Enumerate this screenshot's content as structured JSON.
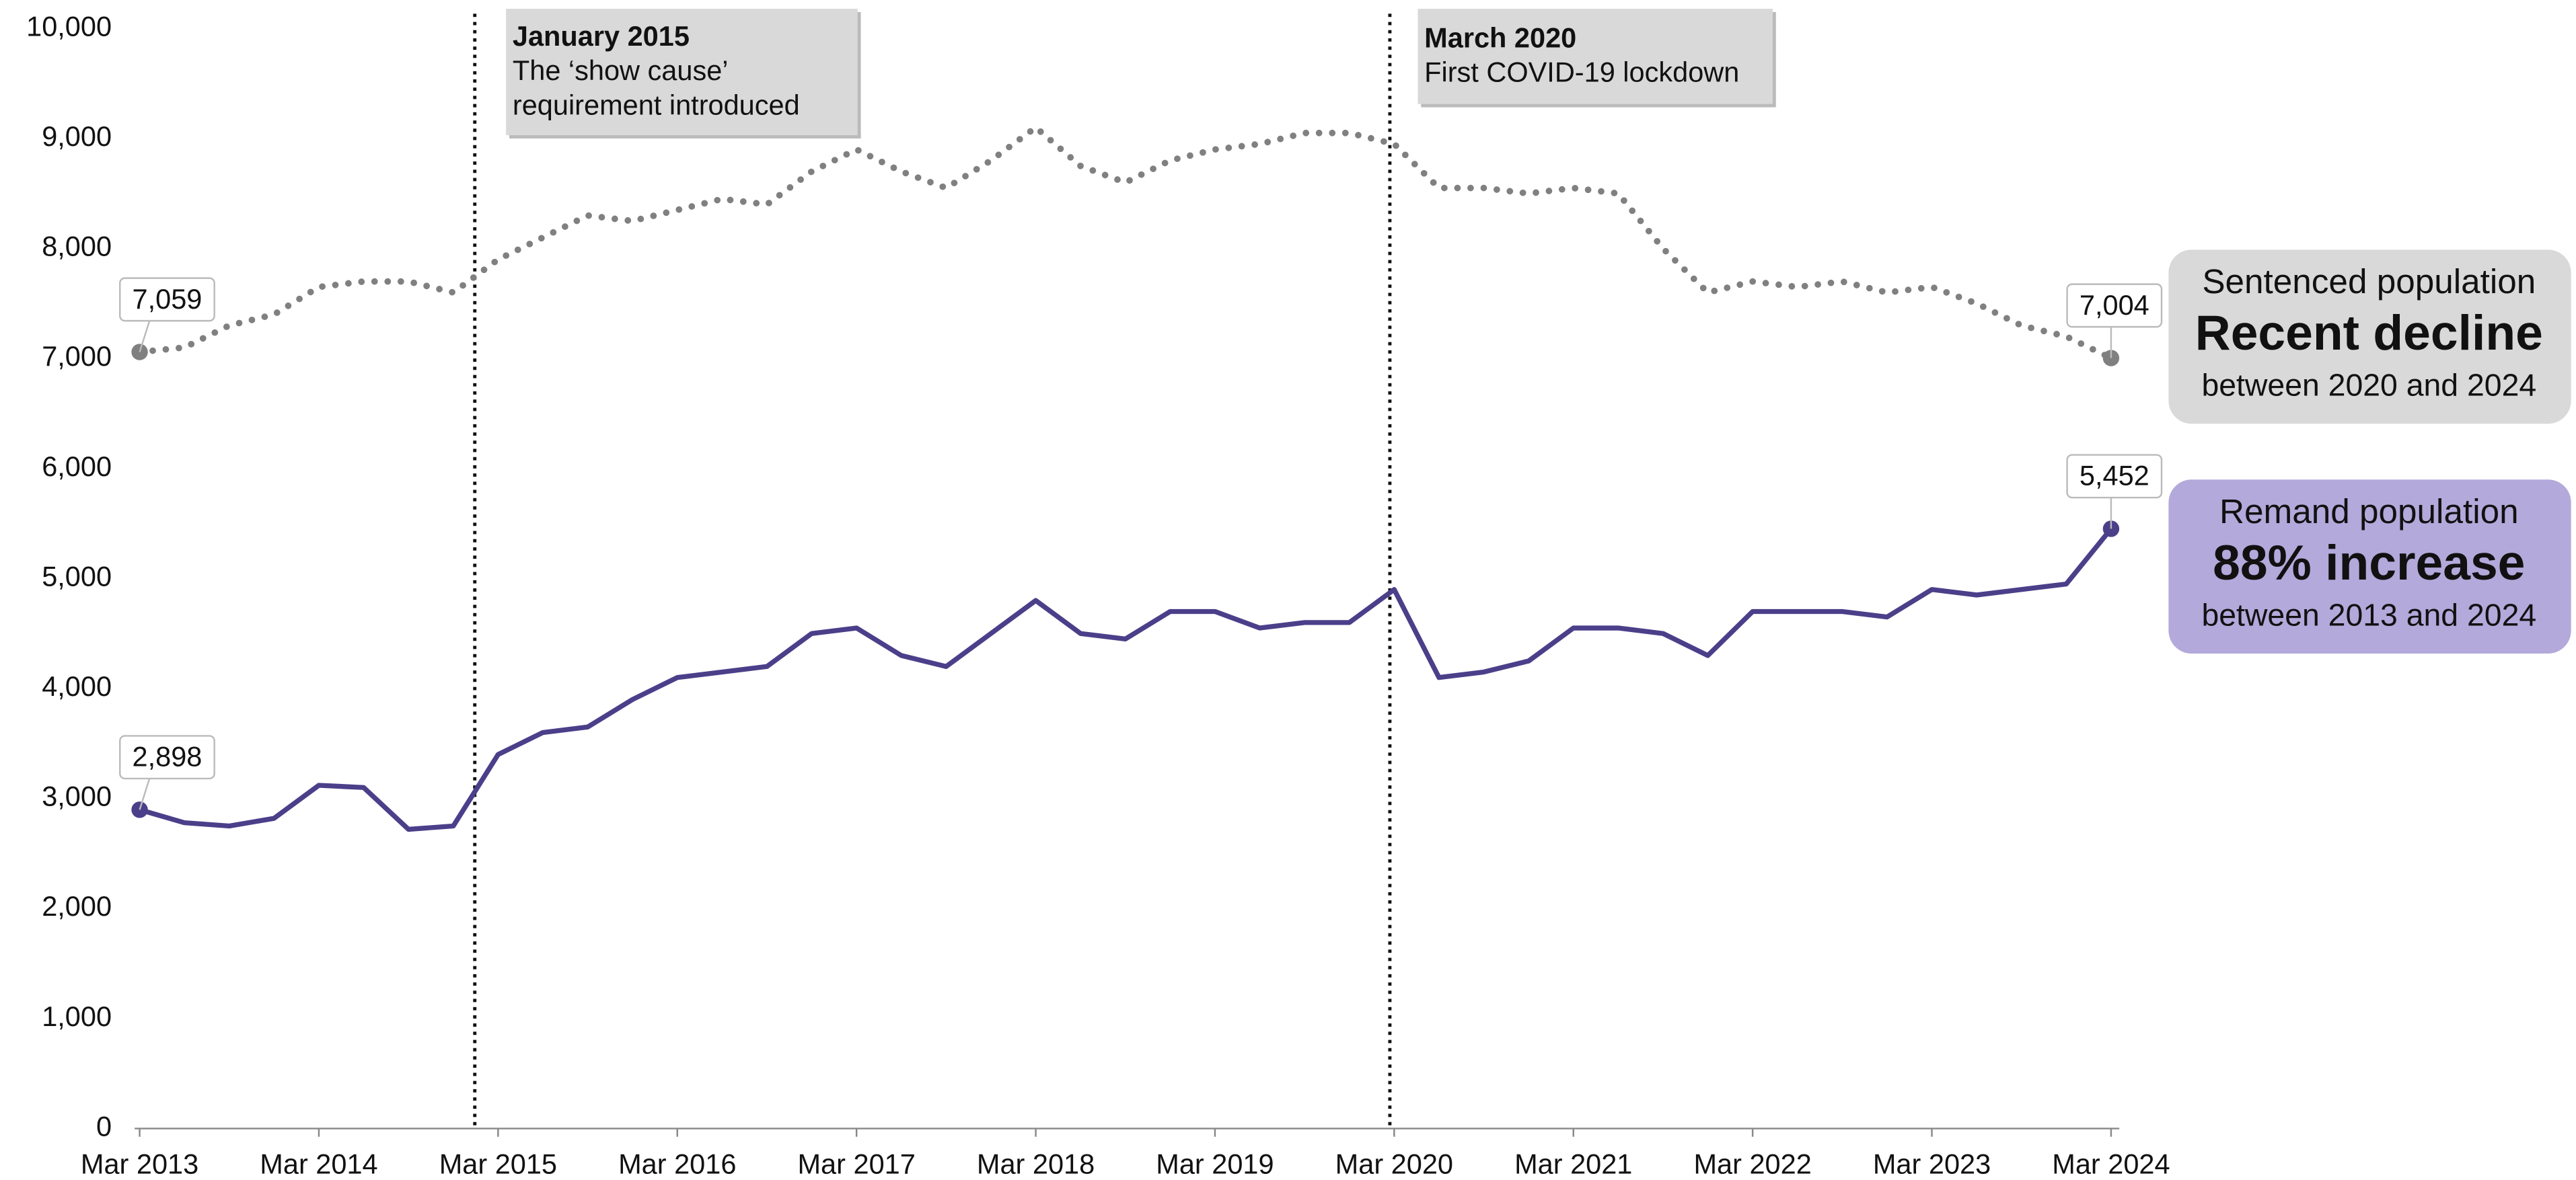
{
  "chart_data": {
    "type": "line",
    "categories": [
      "Mar 2013",
      null,
      null,
      null,
      "Mar 2014",
      null,
      null,
      null,
      "Mar 2015",
      null,
      null,
      null,
      "Mar 2016",
      null,
      null,
      null,
      "Mar 2017",
      null,
      null,
      null,
      "Mar 2018",
      null,
      null,
      null,
      "Mar 2019",
      null,
      null,
      null,
      "Mar 2020",
      null,
      null,
      null,
      "Mar 2021",
      null,
      null,
      null,
      "Mar 2022",
      null,
      null,
      null,
      "Mar 2023",
      null,
      null,
      null,
      "Mar 2024"
    ],
    "ylim": [
      0,
      10000
    ],
    "yticks": [
      0,
      {
        "value": 1000,
        "label": "1,000"
      },
      {
        "value": 2000,
        "label": "2,000"
      },
      {
        "value": 3000,
        "label": "3,000"
      },
      {
        "value": 4000,
        "label": "4,000"
      },
      {
        "value": 5000,
        "label": "5,000"
      },
      {
        "value": 6000,
        "label": "6,000"
      },
      {
        "value": 7000,
        "label": "7,000"
      },
      {
        "value": 8000,
        "label": "8,000"
      },
      {
        "value": 9000,
        "label": "9,000"
      },
      {
        "value": 10000,
        "label": "10,000"
      }
    ],
    "series": [
      {
        "name": "Sentenced population",
        "color": "#808080",
        "dash": "dotted",
        "headline": "Recent decline",
        "note": "between 2020 and 2024",
        "box_color": "#d9d9d9",
        "values": [
          7059,
          7100,
          7300,
          7400,
          7650,
          7700,
          7700,
          7600,
          7900,
          8100,
          8300,
          8250,
          8350,
          8450,
          8400,
          8700,
          8900,
          8700,
          8550,
          8800,
          9100,
          8750,
          8600,
          8800,
          8900,
          8950,
          9050,
          9050,
          8950,
          8550,
          8550,
          8500,
          8550,
          8500,
          8000,
          7600,
          7700,
          7650,
          7700,
          7600,
          7650,
          7500,
          7300,
          7200,
          7004
        ],
        "value_labels": [
          "7,059",
          null,
          null,
          null,
          null,
          null,
          null,
          null,
          null,
          null,
          null,
          null,
          null,
          null,
          null,
          null,
          null,
          null,
          null,
          null,
          null,
          null,
          null,
          null,
          null,
          null,
          null,
          null,
          null,
          null,
          null,
          null,
          null,
          null,
          null,
          null,
          null,
          null,
          null,
          null,
          null,
          null,
          null,
          null,
          "7,004"
        ]
      },
      {
        "name": "Remand population",
        "color": "#4b3f8a",
        "dash": "solid",
        "headline": "88% increase",
        "note": "between 2013 and 2024",
        "box_color": "#b3a9db",
        "values": [
          2898,
          2780,
          2750,
          2820,
          3120,
          3100,
          2720,
          2750,
          3400,
          3600,
          3650,
          3900,
          4100,
          4150,
          4200,
          4500,
          4550,
          4300,
          4200,
          4500,
          4800,
          4500,
          4450,
          4700,
          4700,
          4550,
          4600,
          4600,
          4900,
          4100,
          4150,
          4250,
          4550,
          4550,
          4500,
          4300,
          4700,
          4700,
          4700,
          4650,
          4900,
          4850,
          4900,
          4950,
          5452
        ],
        "value_labels": [
          "2,898",
          null,
          null,
          null,
          null,
          null,
          null,
          null,
          null,
          null,
          null,
          null,
          null,
          null,
          null,
          null,
          null,
          null,
          null,
          null,
          null,
          null,
          null,
          null,
          null,
          null,
          null,
          null,
          null,
          null,
          null,
          null,
          null,
          null,
          null,
          null,
          null,
          null,
          null,
          null,
          null,
          null,
          null,
          null,
          "5,452"
        ]
      }
    ],
    "annotations": [
      {
        "title": "January 2015",
        "text": [
          "The ‘show cause’",
          "requirement introduced"
        ]
      },
      {
        "title": "March 2020",
        "text": [
          "First COVID-19 lockdown"
        ]
      }
    ]
  }
}
